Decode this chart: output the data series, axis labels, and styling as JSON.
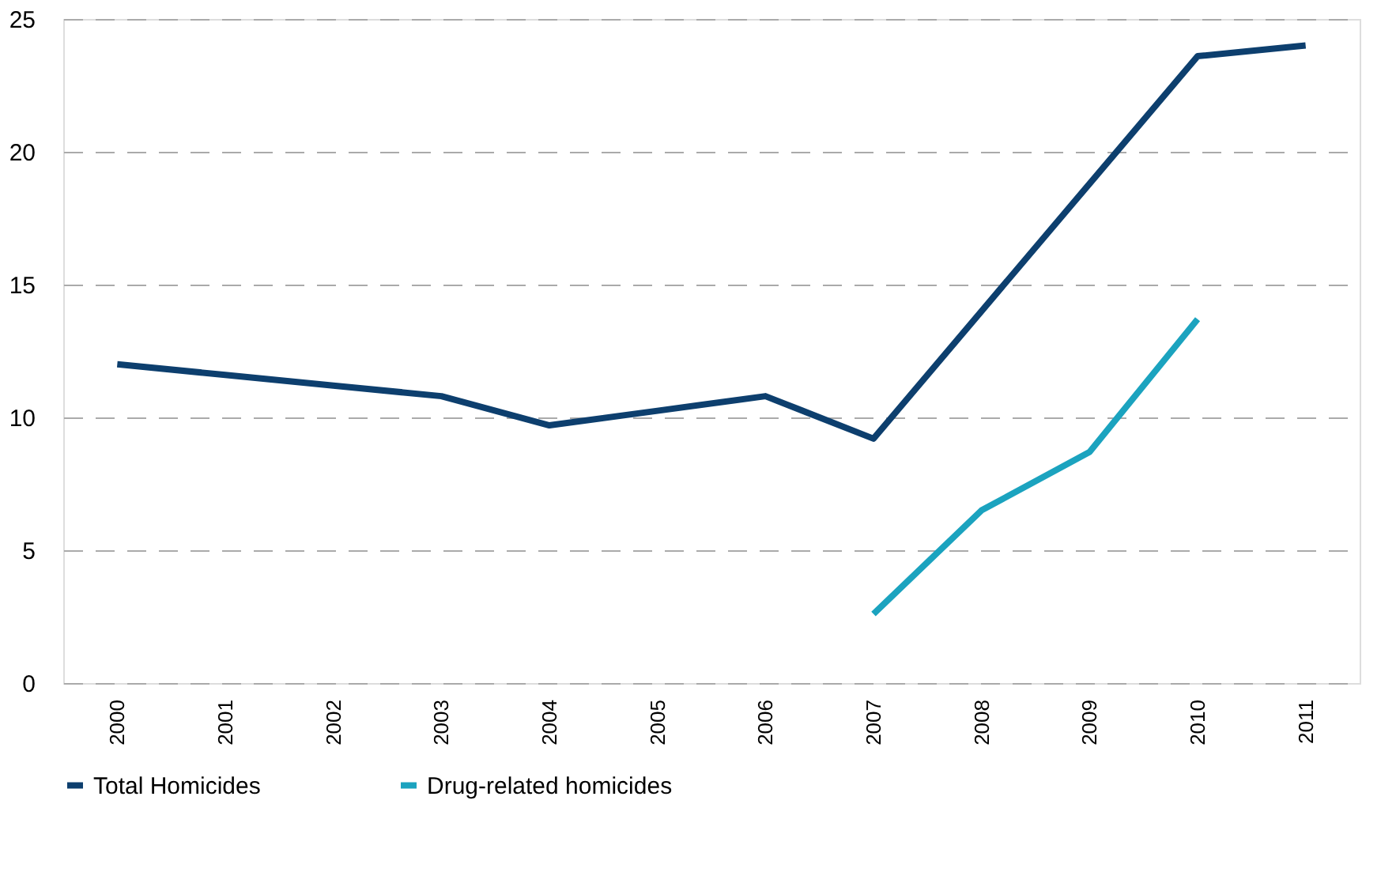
{
  "chart_data": {
    "type": "line",
    "categories": [
      "2000",
      "2001",
      "2002",
      "2003",
      "2004",
      "2005",
      "2006",
      "2007",
      "2008",
      "2009",
      "2010",
      "2011"
    ],
    "series": [
      {
        "name": "Total Homicides",
        "color": "#0d3f6e",
        "values": [
          12.0,
          11.6,
          11.2,
          10.8,
          9.7,
          10.25,
          10.8,
          9.2,
          14.0,
          18.8,
          23.6,
          24.0
        ]
      },
      {
        "name": "Drug-related homicides",
        "color": "#1ba3bf",
        "values": [
          null,
          null,
          null,
          null,
          null,
          null,
          null,
          2.6,
          6.5,
          8.7,
          13.7,
          null
        ]
      }
    ],
    "ylim": [
      0,
      25
    ],
    "yticks": [
      0,
      5,
      10,
      15,
      20,
      25
    ],
    "grid": "y",
    "legend": "bottom",
    "line_style": "solid",
    "marker": "none"
  }
}
